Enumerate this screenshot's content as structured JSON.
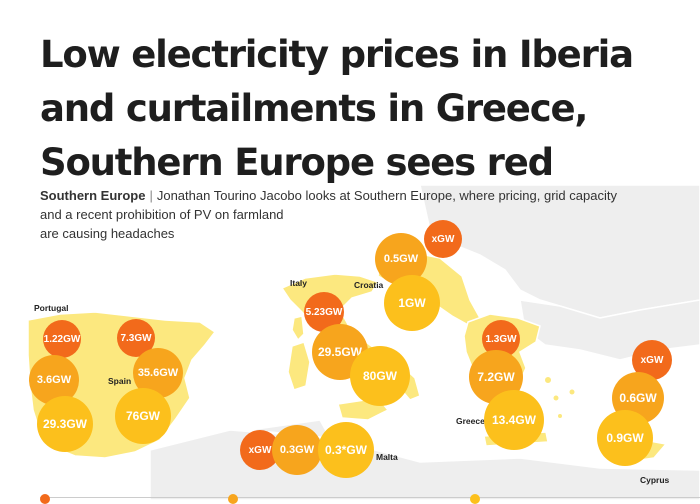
{
  "header": {
    "title_lines": [
      "Low electricity prices in Iberia",
      "and curtailments in Greece,",
      "Southern Europe sees red"
    ]
  },
  "standfirst": {
    "section": "Southern Europe",
    "lines": [
      "Jonathan Tourino Jacobo looks at Southern Europe, where pricing, grid capacity",
      "and a recent prohibition of PV on farmland",
      "are causing headaches"
    ]
  },
  "countries": {
    "portugal": "Portugal",
    "spain": "Spain",
    "italy": "Italy",
    "croatia": "Croatia",
    "malta": "Malta",
    "greece": "Greece",
    "cyprus": "Cyprus"
  },
  "bubbles": {
    "portugal_a": "1.22GW",
    "portugal_b": "3.6GW",
    "portugal_c": "29.3GW",
    "spain_a": "7.3GW",
    "spain_b": "35.6GW",
    "spain_c": "76GW",
    "croatia_a": "xGW",
    "croatia_b": "0.5GW",
    "croatia_c": "1GW",
    "italy_a": "5.23GW",
    "italy_b": "29.5GW",
    "italy_c": "80GW",
    "malta_a": "xGW",
    "malta_b": "0.3GW",
    "malta_c": "0.3*GW",
    "greece_a": "1.3GW",
    "greece_b": "7.2GW",
    "greece_c": "13.4GW",
    "cyprus_a": "xGW",
    "cyprus_b": "0.6GW",
    "cyprus_c": "0.9GW"
  },
  "colors": {
    "land": "#fce87f",
    "land_other": "#eeeeee",
    "border": "#ffffff",
    "sea": "#ffffff",
    "red": "#f26a1b",
    "orange": "#f7a51d",
    "yellow": "#fcc01c",
    "text": "#1e1e1e"
  }
}
